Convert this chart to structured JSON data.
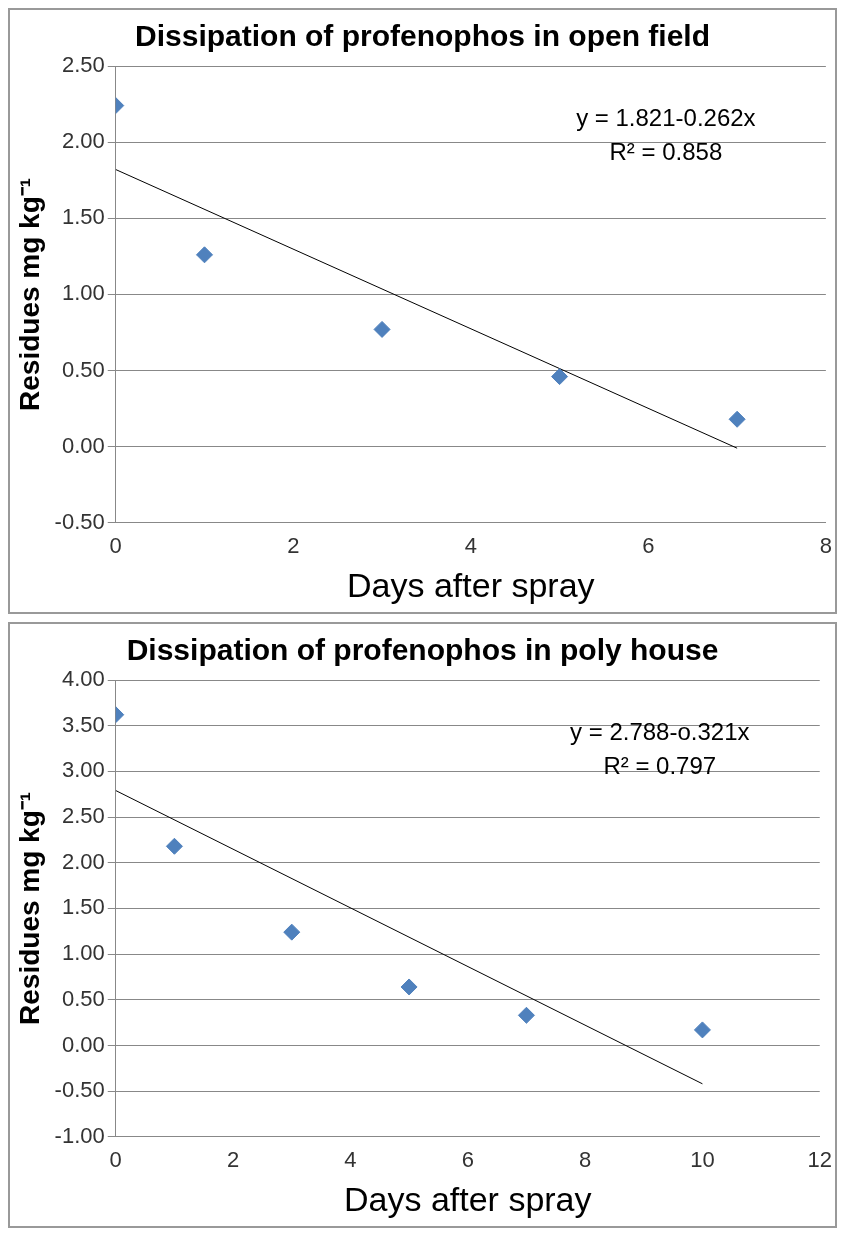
{
  "chart_data": [
    {
      "type": "scatter",
      "title": "Dissipation of profenophos in open field",
      "xlabel": "Days after spray",
      "ylabel": "Residues mg kg⁻¹",
      "xlim": [
        0,
        8
      ],
      "xticks": [
        0,
        2,
        4,
        6,
        8
      ],
      "ylim": [
        -0.5,
        2.5
      ],
      "yticks": [
        {
          "value": -0.5,
          "label": "-0.50"
        },
        {
          "value": 0,
          "label": "0.00"
        },
        {
          "value": 0.5,
          "label": "0.50"
        },
        {
          "value": 1,
          "label": "1.00"
        },
        {
          "value": 1.5,
          "label": "1.50"
        },
        {
          "value": 2,
          "label": "2.00"
        },
        {
          "value": 2.5,
          "label": "2.50"
        }
      ],
      "grid": "y",
      "marker": "diamond",
      "annotations": [
        "y = 1.821-0.262x",
        "R² = 0.858"
      ],
      "series": [
        {
          "color": "#4f81bd",
          "x": [
            0,
            1,
            3,
            5,
            7
          ],
          "values": [
            2.24,
            1.26,
            0.77,
            0.46,
            0.18
          ]
        },
        {
          "type": "line",
          "color": "#000000",
          "x": [
            0,
            7
          ],
          "values": [
            1.82,
            -0.01
          ],
          "marker": "none"
        }
      ]
    },
    {
      "type": "scatter",
      "title": "Dissipation of profenophos in poly house",
      "xlabel": "Days after spray",
      "ylabel": "Residues mg kg⁻¹",
      "xlim": [
        0,
        12
      ],
      "xticks": [
        0,
        2,
        4,
        6,
        8,
        10,
        12
      ],
      "ylim": [
        -1,
        4
      ],
      "yticks": [
        {
          "value": -1,
          "label": "-1.00"
        },
        {
          "value": -0.5,
          "label": "-0.50"
        },
        {
          "value": 0,
          "label": "0.00"
        },
        {
          "value": 0.5,
          "label": "0.50"
        },
        {
          "value": 1,
          "label": "1.00"
        },
        {
          "value": 1.5,
          "label": "1.50"
        },
        {
          "value": 2,
          "label": "2.00"
        },
        {
          "value": 2.5,
          "label": "2.50"
        },
        {
          "value": 3,
          "label": "3.00"
        },
        {
          "value": 3.5,
          "label": "3.50"
        },
        {
          "value": 4,
          "label": "4.00"
        }
      ],
      "grid": "y",
      "marker": "diamond",
      "annotations": [
        "y = 2.788-o.321x",
        "R² = 0.797"
      ],
      "series": [
        {
          "color": "#4f81bd",
          "x": [
            0,
            1,
            3,
            5,
            7,
            10
          ],
          "values": [
            3.62,
            2.18,
            1.24,
            0.64,
            0.33,
            0.17
          ]
        },
        {
          "type": "line",
          "color": "#000000",
          "x": [
            0,
            10
          ],
          "values": [
            2.79,
            -0.42
          ],
          "marker": "none"
        }
      ]
    }
  ]
}
